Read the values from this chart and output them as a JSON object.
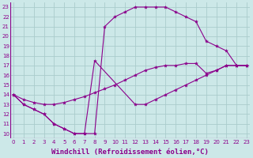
{
  "bg_color": "#cce8e8",
  "grid_color": "#aacccc",
  "line_color": "#8b008b",
  "xlabel": "Windchill (Refroidissement éolien,°C)",
  "xlabel_fontsize": 6.5,
  "ylabel_values": [
    10,
    11,
    12,
    13,
    14,
    15,
    16,
    17,
    18,
    19,
    20,
    21,
    22,
    23
  ],
  "xlabel_values": [
    0,
    1,
    2,
    3,
    4,
    5,
    6,
    7,
    8,
    9,
    10,
    11,
    12,
    13,
    14,
    15,
    16,
    17,
    18,
    19,
    20,
    21,
    22,
    23
  ],
  "xlim": [
    -0.3,
    23.3
  ],
  "ylim": [
    9.5,
    23.5
  ],
  "curves": [
    {
      "x": [
        0,
        1,
        2,
        3,
        4,
        5,
        6,
        7,
        8,
        9,
        10,
        11,
        12,
        13,
        14,
        15,
        16,
        17,
        18,
        19,
        20,
        21,
        22,
        23
      ],
      "y": [
        14,
        13,
        12.5,
        12,
        11,
        10.5,
        10,
        10,
        10,
        21,
        22,
        22.5,
        23,
        23,
        23,
        23,
        22.5,
        22,
        21.5,
        19.5,
        19,
        18.5,
        17,
        17
      ]
    },
    {
      "x": [
        0,
        1,
        2,
        3,
        4,
        5,
        6,
        7,
        8,
        12,
        13,
        14,
        15,
        16,
        17,
        18,
        19,
        20,
        21,
        22,
        23
      ],
      "y": [
        14,
        13,
        12.5,
        12,
        11,
        10.5,
        10,
        10,
        17.5,
        13,
        13,
        13.5,
        14,
        14.5,
        15,
        15.5,
        16,
        16.5,
        17,
        17,
        17
      ]
    },
    {
      "x": [
        0,
        1,
        2,
        3,
        4,
        5,
        6,
        7,
        8,
        9,
        10,
        11,
        12,
        13,
        14,
        15,
        16,
        17,
        18,
        19,
        20,
        21,
        22,
        23
      ],
      "y": [
        14,
        13.5,
        13.2,
        13,
        13,
        13.2,
        13.5,
        13.8,
        14.2,
        14.6,
        15,
        15.5,
        16,
        16.5,
        16.8,
        17,
        17,
        17.2,
        17.2,
        16.2,
        16.5,
        17,
        17,
        17
      ]
    }
  ]
}
